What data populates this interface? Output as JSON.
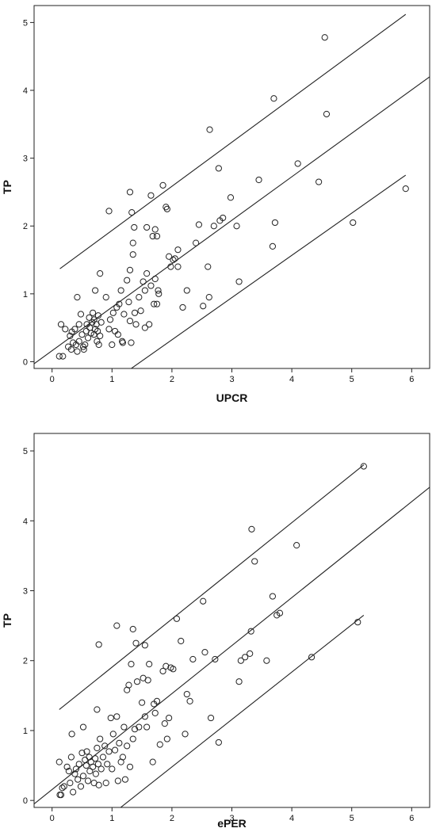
{
  "chart_data": [
    {
      "type": "scatter",
      "xlabel": "UPCR",
      "ylabel": "TP",
      "xlim": [
        -0.3,
        6.3
      ],
      "ylim": [
        -0.1,
        5.25
      ],
      "xticks": [
        0,
        1,
        2,
        3,
        4,
        5,
        6
      ],
      "yticks": [
        0,
        1,
        2,
        3,
        4,
        5
      ],
      "grid": false,
      "fit_lines": [
        {
          "name": "upper",
          "x": [
            0.13,
            5.9
          ],
          "y": [
            1.37,
            5.12
          ]
        },
        {
          "name": "fit",
          "x": [
            -0.3,
            6.3
          ],
          "y": [
            -0.03,
            4.2
          ]
        },
        {
          "name": "lower",
          "x": [
            1.0,
            5.9
          ],
          "y": [
            -0.3,
            2.75
          ]
        }
      ],
      "points": [
        [
          0.12,
          0.08
        ],
        [
          0.15,
          0.55
        ],
        [
          0.18,
          0.08
        ],
        [
          0.22,
          0.48
        ],
        [
          0.27,
          0.22
        ],
        [
          0.3,
          0.38
        ],
        [
          0.32,
          0.18
        ],
        [
          0.33,
          0.44
        ],
        [
          0.35,
          0.28
        ],
        [
          0.38,
          0.48
        ],
        [
          0.4,
          0.25
        ],
        [
          0.42,
          0.15
        ],
        [
          0.42,
          0.95
        ],
        [
          0.45,
          0.3
        ],
        [
          0.45,
          0.55
        ],
        [
          0.48,
          0.7
        ],
        [
          0.5,
          0.4
        ],
        [
          0.52,
          0.22
        ],
        [
          0.53,
          0.18
        ],
        [
          0.55,
          0.25
        ],
        [
          0.57,
          0.45
        ],
        [
          0.58,
          0.55
        ],
        [
          0.6,
          0.35
        ],
        [
          0.62,
          0.65
        ],
        [
          0.63,
          0.5
        ],
        [
          0.65,
          0.42
        ],
        [
          0.67,
          0.58
        ],
        [
          0.68,
          0.72
        ],
        [
          0.7,
          0.4
        ],
        [
          0.7,
          0.62
        ],
        [
          0.72,
          0.48
        ],
        [
          0.72,
          1.05
        ],
        [
          0.74,
          0.55
        ],
        [
          0.75,
          0.3
        ],
        [
          0.76,
          0.45
        ],
        [
          0.77,
          0.68
        ],
        [
          0.78,
          0.25
        ],
        [
          0.8,
          0.38
        ],
        [
          0.8,
          1.3
        ],
        [
          0.82,
          0.58
        ],
        [
          0.9,
          0.95
        ],
        [
          0.95,
          0.48
        ],
        [
          0.97,
          0.62
        ],
        [
          1.0,
          0.25
        ],
        [
          1.02,
          0.72
        ],
        [
          1.05,
          0.45
        ],
        [
          1.08,
          0.8
        ],
        [
          1.1,
          0.4
        ],
        [
          1.12,
          0.85
        ],
        [
          1.15,
          1.05
        ],
        [
          1.17,
          0.3
        ],
        [
          1.18,
          0.28
        ],
        [
          1.2,
          0.7
        ],
        [
          1.25,
          1.2
        ],
        [
          1.28,
          0.88
        ],
        [
          1.3,
          0.6
        ],
        [
          1.3,
          1.35
        ],
        [
          1.32,
          0.28
        ],
        [
          1.33,
          2.2
        ],
        [
          1.35,
          1.75
        ],
        [
          1.35,
          1.58
        ],
        [
          1.37,
          1.98
        ],
        [
          1.38,
          0.72
        ],
        [
          1.4,
          0.55
        ],
        [
          1.45,
          0.95
        ],
        [
          1.48,
          0.75
        ],
        [
          1.52,
          1.18
        ],
        [
          1.55,
          0.5
        ],
        [
          1.55,
          1.05
        ],
        [
          1.58,
          1.3
        ],
        [
          1.58,
          1.98
        ],
        [
          1.62,
          0.55
        ],
        [
          1.65,
          1.12
        ],
        [
          1.65,
          2.45
        ],
        [
          1.68,
          1.85
        ],
        [
          1.7,
          0.85
        ],
        [
          1.72,
          1.95
        ],
        [
          1.72,
          1.22
        ],
        [
          1.75,
          0.85
        ],
        [
          1.75,
          1.85
        ],
        [
          1.77,
          1.05
        ],
        [
          1.78,
          1.0
        ],
        [
          1.85,
          2.6
        ],
        [
          1.9,
          2.28
        ],
        [
          1.92,
          2.25
        ],
        [
          1.95,
          1.55
        ],
        [
          1.98,
          1.4
        ],
        [
          2.02,
          1.5
        ],
        [
          2.05,
          1.52
        ],
        [
          2.1,
          1.4
        ],
        [
          2.1,
          1.65
        ],
        [
          2.18,
          0.8
        ],
        [
          2.25,
          1.05
        ],
        [
          2.4,
          1.75
        ],
        [
          2.45,
          2.02
        ],
        [
          2.52,
          0.82
        ],
        [
          2.6,
          1.4
        ],
        [
          2.62,
          0.95
        ],
        [
          2.63,
          3.42
        ],
        [
          2.7,
          2.0
        ],
        [
          2.78,
          2.85
        ],
        [
          2.8,
          2.08
        ],
        [
          2.85,
          2.12
        ],
        [
          2.98,
          2.42
        ],
        [
          3.08,
          2.0
        ],
        [
          3.12,
          1.18
        ],
        [
          3.45,
          2.68
        ],
        [
          3.68,
          1.7
        ],
        [
          3.7,
          3.88
        ],
        [
          3.72,
          2.05
        ],
        [
          4.1,
          2.92
        ],
        [
          4.45,
          2.65
        ],
        [
          4.55,
          4.78
        ],
        [
          4.58,
          3.65
        ],
        [
          5.02,
          2.05
        ],
        [
          5.9,
          2.55
        ],
        [
          0.95,
          2.22
        ],
        [
          1.3,
          2.5
        ]
      ]
    },
    {
      "type": "scatter",
      "xlabel": "ePER",
      "ylabel": "TP",
      "xlim": [
        -0.3,
        6.3
      ],
      "ylim": [
        -0.1,
        5.25
      ],
      "xticks": [
        0,
        1,
        2,
        3,
        4,
        5,
        6
      ],
      "yticks": [
        0,
        1,
        2,
        3,
        4,
        5
      ],
      "grid": false,
      "fit_lines": [
        {
          "name": "upper",
          "x": [
            0.12,
            5.2
          ],
          "y": [
            1.3,
            4.8
          ]
        },
        {
          "name": "fit",
          "x": [
            -0.3,
            6.3
          ],
          "y": [
            -0.05,
            4.48
          ]
        },
        {
          "name": "lower",
          "x": [
            0.85,
            5.2
          ],
          "y": [
            -0.3,
            2.65
          ]
        }
      ],
      "points": [
        [
          0.12,
          0.55
        ],
        [
          0.13,
          0.08
        ],
        [
          0.15,
          0.08
        ],
        [
          0.17,
          0.18
        ],
        [
          0.2,
          0.2
        ],
        [
          0.25,
          0.48
        ],
        [
          0.28,
          0.42
        ],
        [
          0.3,
          0.25
        ],
        [
          0.32,
          0.62
        ],
        [
          0.33,
          0.95
        ],
        [
          0.35,
          0.12
        ],
        [
          0.38,
          0.38
        ],
        [
          0.4,
          0.45
        ],
        [
          0.43,
          0.3
        ],
        [
          0.45,
          0.52
        ],
        [
          0.48,
          0.2
        ],
        [
          0.5,
          0.68
        ],
        [
          0.52,
          0.35
        ],
        [
          0.52,
          1.05
        ],
        [
          0.55,
          0.58
        ],
        [
          0.57,
          0.5
        ],
        [
          0.58,
          0.7
        ],
        [
          0.6,
          0.28
        ],
        [
          0.62,
          0.62
        ],
        [
          0.63,
          0.42
        ],
        [
          0.65,
          0.55
        ],
        [
          0.68,
          0.48
        ],
        [
          0.7,
          0.25
        ],
        [
          0.72,
          0.6
        ],
        [
          0.73,
          0.38
        ],
        [
          0.75,
          0.75
        ],
        [
          0.75,
          1.3
        ],
        [
          0.77,
          0.52
        ],
        [
          0.78,
          0.22
        ],
        [
          0.8,
          0.88
        ],
        [
          0.82,
          0.45
        ],
        [
          0.85,
          0.62
        ],
        [
          0.88,
          0.78
        ],
        [
          0.9,
          0.25
        ],
        [
          0.92,
          0.52
        ],
        [
          0.95,
          0.7
        ],
        [
          0.98,
          1.18
        ],
        [
          1.0,
          0.45
        ],
        [
          1.02,
          0.95
        ],
        [
          1.05,
          0.72
        ],
        [
          1.08,
          1.2
        ],
        [
          1.1,
          0.28
        ],
        [
          1.12,
          0.82
        ],
        [
          1.15,
          0.55
        ],
        [
          1.18,
          0.62
        ],
        [
          1.2,
          1.05
        ],
        [
          1.22,
          0.3
        ],
        [
          1.25,
          0.78
        ],
        [
          1.25,
          1.58
        ],
        [
          1.28,
          1.65
        ],
        [
          1.3,
          0.48
        ],
        [
          1.32,
          1.95
        ],
        [
          1.35,
          0.88
        ],
        [
          1.35,
          2.45
        ],
        [
          1.38,
          1.02
        ],
        [
          1.4,
          2.25
        ],
        [
          1.42,
          1.7
        ],
        [
          1.45,
          1.05
        ],
        [
          1.5,
          1.4
        ],
        [
          1.52,
          1.75
        ],
        [
          1.55,
          1.2
        ],
        [
          1.55,
          2.22
        ],
        [
          1.58,
          1.05
        ],
        [
          1.6,
          1.72
        ],
        [
          1.62,
          1.95
        ],
        [
          1.68,
          0.55
        ],
        [
          1.7,
          1.38
        ],
        [
          1.72,
          1.25
        ],
        [
          1.75,
          1.42
        ],
        [
          1.8,
          0.8
        ],
        [
          1.85,
          1.85
        ],
        [
          1.88,
          1.1
        ],
        [
          1.9,
          1.92
        ],
        [
          1.92,
          0.88
        ],
        [
          1.95,
          1.18
        ],
        [
          1.98,
          1.9
        ],
        [
          2.02,
          1.88
        ],
        [
          2.08,
          2.6
        ],
        [
          2.15,
          2.28
        ],
        [
          2.22,
          0.95
        ],
        [
          2.25,
          1.52
        ],
        [
          2.3,
          1.42
        ],
        [
          2.35,
          2.02
        ],
        [
          2.52,
          2.85
        ],
        [
          2.55,
          2.12
        ],
        [
          2.65,
          1.18
        ],
        [
          2.72,
          2.02
        ],
        [
          2.78,
          0.83
        ],
        [
          3.12,
          1.7
        ],
        [
          3.15,
          2.0
        ],
        [
          3.22,
          2.05
        ],
        [
          3.3,
          2.1
        ],
        [
          3.32,
          2.42
        ],
        [
          3.33,
          3.88
        ],
        [
          3.38,
          3.42
        ],
        [
          3.58,
          2.0
        ],
        [
          3.68,
          2.92
        ],
        [
          3.75,
          2.65
        ],
        [
          3.8,
          2.68
        ],
        [
          4.08,
          3.65
        ],
        [
          4.33,
          2.05
        ],
        [
          5.1,
          2.55
        ],
        [
          5.2,
          4.78
        ],
        [
          0.78,
          2.23
        ],
        [
          1.08,
          2.5
        ]
      ]
    }
  ]
}
